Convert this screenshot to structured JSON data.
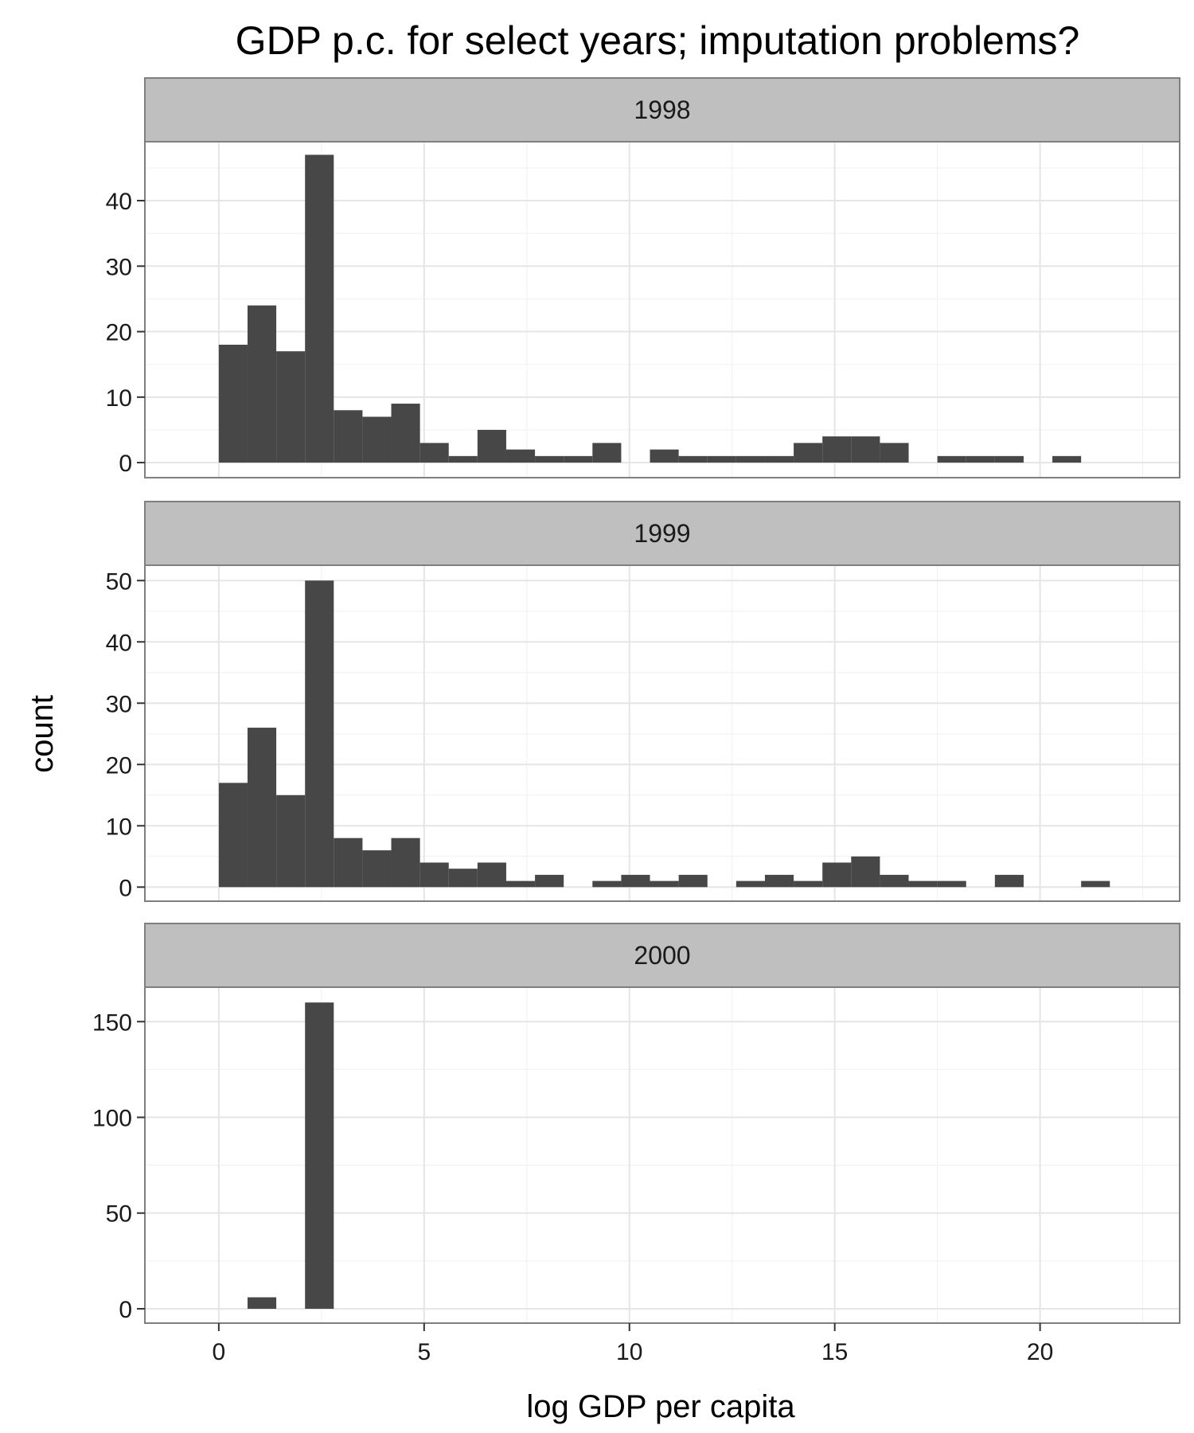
{
  "chart_data": {
    "type": "bar",
    "title": "GDP p.c. for select years; imputation problems?",
    "xlabel": "log GDP per capita",
    "ylabel": "count",
    "xlim": [
      -1.8,
      23.4
    ],
    "x_ticks": [
      0,
      5,
      10,
      15,
      20
    ],
    "bin_width": 0.7,
    "grid": true,
    "panels": [
      {
        "label": "1998",
        "ylim": [
          -2.3,
          49
        ],
        "y_ticks": [
          0,
          10,
          20,
          30,
          40
        ],
        "bins": [
          {
            "x": 0.35,
            "count": 18
          },
          {
            "x": 1.05,
            "count": 24
          },
          {
            "x": 1.75,
            "count": 17
          },
          {
            "x": 2.45,
            "count": 47
          },
          {
            "x": 3.15,
            "count": 8
          },
          {
            "x": 3.85,
            "count": 7
          },
          {
            "x": 4.55,
            "count": 9
          },
          {
            "x": 5.25,
            "count": 3
          },
          {
            "x": 5.95,
            "count": 1
          },
          {
            "x": 6.65,
            "count": 5
          },
          {
            "x": 7.35,
            "count": 2
          },
          {
            "x": 8.05,
            "count": 1
          },
          {
            "x": 8.75,
            "count": 1
          },
          {
            "x": 9.45,
            "count": 3
          },
          {
            "x": 10.85,
            "count": 2
          },
          {
            "x": 11.55,
            "count": 1
          },
          {
            "x": 12.25,
            "count": 1
          },
          {
            "x": 12.95,
            "count": 1
          },
          {
            "x": 13.65,
            "count": 1
          },
          {
            "x": 14.35,
            "count": 3
          },
          {
            "x": 15.05,
            "count": 4
          },
          {
            "x": 15.75,
            "count": 4
          },
          {
            "x": 16.45,
            "count": 3
          },
          {
            "x": 17.85,
            "count": 1
          },
          {
            "x": 18.55,
            "count": 1
          },
          {
            "x": 19.25,
            "count": 1
          },
          {
            "x": 20.65,
            "count": 1
          }
        ]
      },
      {
        "label": "1999",
        "ylim": [
          -2.3,
          52.5
        ],
        "y_ticks": [
          0,
          10,
          20,
          30,
          40,
          50
        ],
        "bins": [
          {
            "x": 0.35,
            "count": 17
          },
          {
            "x": 1.05,
            "count": 26
          },
          {
            "x": 1.75,
            "count": 15
          },
          {
            "x": 2.45,
            "count": 50
          },
          {
            "x": 3.15,
            "count": 8
          },
          {
            "x": 3.85,
            "count": 6
          },
          {
            "x": 4.55,
            "count": 8
          },
          {
            "x": 5.25,
            "count": 4
          },
          {
            "x": 5.95,
            "count": 3
          },
          {
            "x": 6.65,
            "count": 4
          },
          {
            "x": 7.35,
            "count": 1
          },
          {
            "x": 8.05,
            "count": 2
          },
          {
            "x": 9.45,
            "count": 1
          },
          {
            "x": 10.15,
            "count": 2
          },
          {
            "x": 10.85,
            "count": 1
          },
          {
            "x": 11.55,
            "count": 2
          },
          {
            "x": 12.95,
            "count": 1
          },
          {
            "x": 13.65,
            "count": 2
          },
          {
            "x": 14.35,
            "count": 1
          },
          {
            "x": 15.05,
            "count": 4
          },
          {
            "x": 15.75,
            "count": 5
          },
          {
            "x": 16.45,
            "count": 2
          },
          {
            "x": 17.15,
            "count": 1
          },
          {
            "x": 17.85,
            "count": 1
          },
          {
            "x": 19.25,
            "count": 2
          },
          {
            "x": 21.35,
            "count": 1
          }
        ]
      },
      {
        "label": "2000",
        "ylim": [
          -7.5,
          168
        ],
        "y_ticks": [
          0,
          50,
          100,
          150
        ],
        "bins": [
          {
            "x": 1.05,
            "count": 6
          },
          {
            "x": 2.45,
            "count": 160
          }
        ]
      }
    ]
  }
}
